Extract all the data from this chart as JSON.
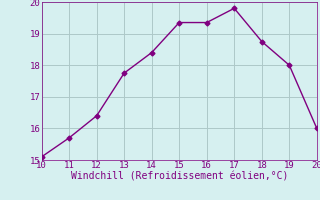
{
  "x": [
    10,
    11,
    12,
    13,
    14,
    15,
    16,
    17,
    18,
    19,
    20
  ],
  "y": [
    15.1,
    15.7,
    16.4,
    17.75,
    18.4,
    19.35,
    19.35,
    19.8,
    18.75,
    18.0,
    16.0
  ],
  "xlim": [
    10,
    20
  ],
  "ylim": [
    15,
    20
  ],
  "xticks": [
    10,
    11,
    12,
    13,
    14,
    15,
    16,
    17,
    18,
    19,
    20
  ],
  "yticks": [
    15,
    16,
    17,
    18,
    19,
    20
  ],
  "xlabel": "Windchill (Refroidissement éolien,°C)",
  "line_color": "#800080",
  "marker": "D",
  "marker_size": 2.5,
  "background_color": "#d6f0f0",
  "grid_color": "#adc8c8",
  "tick_label_color": "#800080",
  "xlabel_color": "#800080",
  "xlabel_fontsize": 7,
  "tick_fontsize": 6.5,
  "linewidth": 1.0
}
